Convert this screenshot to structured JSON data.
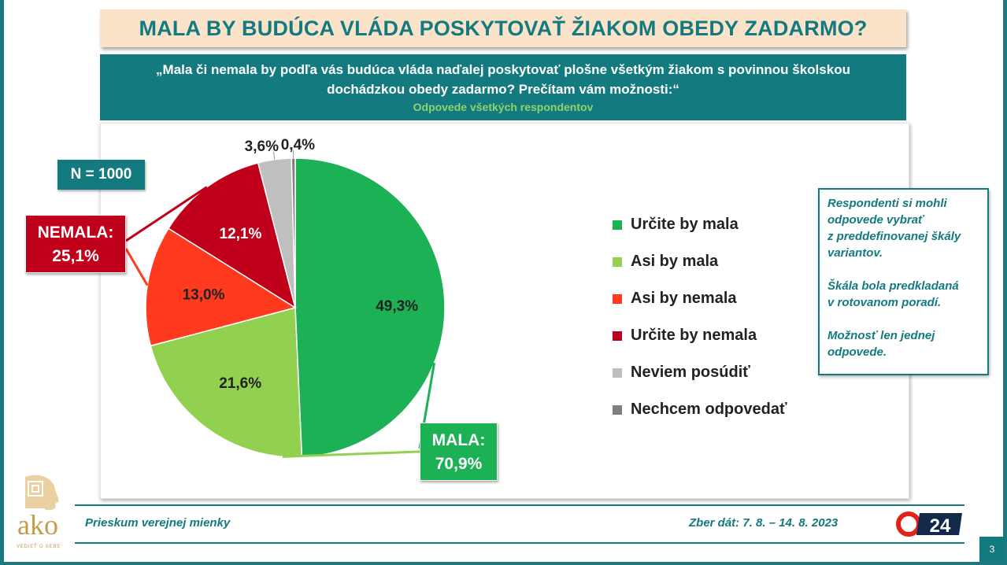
{
  "title": "MALA BY BUDÚCA VLÁDA POSKYTOVAŤ ŽIAKOM OBEDY ZADARMO?",
  "question": "„Mala či nemala by podľa vás budúca vláda naďalej poskytovať plošne všetkým žiakom s povinnou školskou dochádzkou obedy zadarmo? Prečítam vám možnosti:“",
  "subtitle": "Odpovede všetkých respondentov",
  "n_label": "N = 1000",
  "nemala_group": {
    "label": "NEMALA:",
    "value": "25,1%"
  },
  "mala_group": {
    "label": "MALA:",
    "value": "70,9%"
  },
  "chart_data": {
    "type": "pie",
    "start": "12 o'clock, clockwise",
    "slices": [
      {
        "name": "Určite by mala",
        "value": 49.3,
        "label": "49,3%",
        "color": "#1db156"
      },
      {
        "name": "Asi by mala",
        "value": 21.6,
        "label": "21,6%",
        "color": "#92d050"
      },
      {
        "name": "Asi by nemala",
        "value": 13.0,
        "label": "13,0%",
        "color": "#ff3a1f"
      },
      {
        "name": "Určite by nemala",
        "value": 12.1,
        "label": "12,1%",
        "color": "#c0001a"
      },
      {
        "name": "Neviem posúdiť",
        "value": 3.6,
        "label": "3,6%",
        "color": "#bfbfbf"
      },
      {
        "name": "Nechcem odpovedať",
        "value": 0.4,
        "label": "0,4%",
        "color": "#7f7f7f"
      }
    ],
    "legend_position": "right"
  },
  "note": [
    "Respondenti si mohli\nodpovede vybrať\nz preddefinovanej škály\nvariantov.",
    "Škála bola predkladaná\nv rotovanom poradí.",
    "Možnosť len jednej\nodpovede."
  ],
  "footer": {
    "left": "Prieskum verejnej mienky",
    "right": "Zber dát: 7. 8. – 14. 8. 2023",
    "page": "3"
  },
  "logo": {
    "text": "ako",
    "tagline": "VEDIEŤ O SEBE",
    "icon": "head-profile-icon"
  },
  "broadcaster_logo": {
    "text": "24",
    "icon": "joj24-logo"
  }
}
